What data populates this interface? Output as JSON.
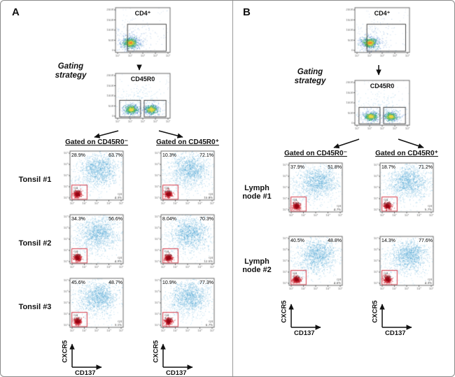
{
  "axis_ticks_log": [
    "10⁰",
    "10¹",
    "10²",
    "10³",
    "10⁴"
  ],
  "axis_ticks_linear": [
    "0",
    "50K",
    "100K",
    "150K",
    "200K"
  ],
  "quad_labels": {
    "lower_left": "Q4",
    "lower_right": "Q3"
  },
  "panels": [
    {
      "label": "A",
      "gating_strategy_label": "Gating strategy",
      "gating_plots": [
        {
          "title": "CD4⁺"
        },
        {
          "title": "CD45R0"
        }
      ],
      "column_headers": [
        "Gated on CD45R0⁻",
        "Gated on CD45R0⁺"
      ],
      "rows": [
        {
          "label": "Tonsil #1",
          "plots": [
            {
              "q1": "28.9%",
              "q2": "63.7%",
              "q4": "3.1%",
              "q3": "4.3%"
            },
            {
              "q1": "10.3%",
              "q2": "72.1%",
              "q4": "6.8%",
              "q3": "10.8%"
            }
          ]
        },
        {
          "label": "Tonsil #2",
          "plots": [
            {
              "q1": "34.3%",
              "q2": "56.6%",
              "q4": "4.2%",
              "q3": "4.9%"
            },
            {
              "q1": "8.04%",
              "q2": "70.3%",
              "q4": "9.2%",
              "q3": "12.5%"
            }
          ]
        },
        {
          "label": "Tonsil #3",
          "plots": [
            {
              "q1": "45.6%",
              "q2": "48.7%",
              "q4": "2.6%",
              "q3": "3.1%"
            },
            {
              "q1": "10.9%",
              "q2": "77.3%",
              "q4": "5.1%",
              "q3": "6.7%"
            }
          ]
        }
      ],
      "y_axis_label": "CXCR5",
      "x_axis_label": "CD137"
    },
    {
      "label": "B",
      "gating_strategy_label": "Gating strategy",
      "gating_plots": [
        {
          "title": "CD4⁺"
        },
        {
          "title": "CD45R0"
        }
      ],
      "column_headers": [
        "Gated on CD45R0⁻",
        "Gated on CD45R0⁺"
      ],
      "rows": [
        {
          "label": "Lymph node #1",
          "plots": [
            {
              "q1": "37.9%",
              "q2": "51.8%",
              "q4": "5.6%",
              "q3": "4.7%"
            },
            {
              "q1": "18.7%",
              "q2": "71.2%",
              "q4": "4.4%",
              "q3": "5.7%"
            }
          ]
        },
        {
          "label": "Lymph node #2",
          "plots": [
            {
              "q1": "40.5%",
              "q2": "48.8%",
              "q4": "6.1%",
              "q3": "4.6%"
            },
            {
              "q1": "14.3%",
              "q2": "77.6%",
              "q4": "3.8%",
              "q3": "4.3%"
            }
          ]
        }
      ],
      "y_axis_label": "CXCR5",
      "x_axis_label": "CD137"
    }
  ],
  "chart_data": {
    "type": "scatter",
    "subtype": "flow-cytometry-dot-plots",
    "gating_strategy": [
      "CD4+",
      "CD45R0"
    ],
    "x_axis": "CD137",
    "y_axis": "CXCR5",
    "panels": [
      {
        "panel": "A",
        "samples": [
          "Tonsil #1",
          "Tonsil #2",
          "Tonsil #3"
        ],
        "series": [
          {
            "sample": "Tonsil #1",
            "gate": "CD45R0-",
            "upper_left_pct": 28.9,
            "upper_right_pct": 63.7
          },
          {
            "sample": "Tonsil #1",
            "gate": "CD45R0+",
            "upper_left_pct": 10.3,
            "upper_right_pct": 72.1
          },
          {
            "sample": "Tonsil #2",
            "gate": "CD45R0-",
            "upper_left_pct": 34.3,
            "upper_right_pct": 56.6
          },
          {
            "sample": "Tonsil #2",
            "gate": "CD45R0+",
            "upper_left_pct": 8.04,
            "upper_right_pct": 70.3
          },
          {
            "sample": "Tonsil #3",
            "gate": "CD45R0-",
            "upper_left_pct": 45.6,
            "upper_right_pct": 48.7
          },
          {
            "sample": "Tonsil #3",
            "gate": "CD45R0+",
            "upper_left_pct": 10.9,
            "upper_right_pct": 77.3
          }
        ]
      },
      {
        "panel": "B",
        "samples": [
          "Lymph node #1",
          "Lymph node #2"
        ],
        "series": [
          {
            "sample": "Lymph node #1",
            "gate": "CD45R0-",
            "upper_left_pct": 37.9,
            "upper_right_pct": 51.8
          },
          {
            "sample": "Lymph node #1",
            "gate": "CD45R0+",
            "upper_left_pct": 18.7,
            "upper_right_pct": 71.2
          },
          {
            "sample": "Lymph node #2",
            "gate": "CD45R0-",
            "upper_left_pct": 40.5,
            "upper_right_pct": 48.8
          },
          {
            "sample": "Lymph node #2",
            "gate": "CD45R0+",
            "upper_left_pct": 14.3,
            "upper_right_pct": 77.6
          }
        ]
      }
    ]
  }
}
